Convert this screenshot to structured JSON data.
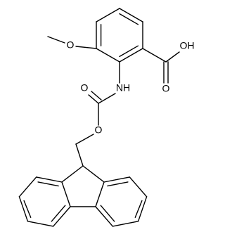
{
  "labels": [
    "O",
    "OH",
    "O",
    "NH",
    "O",
    "O"
  ]
}
